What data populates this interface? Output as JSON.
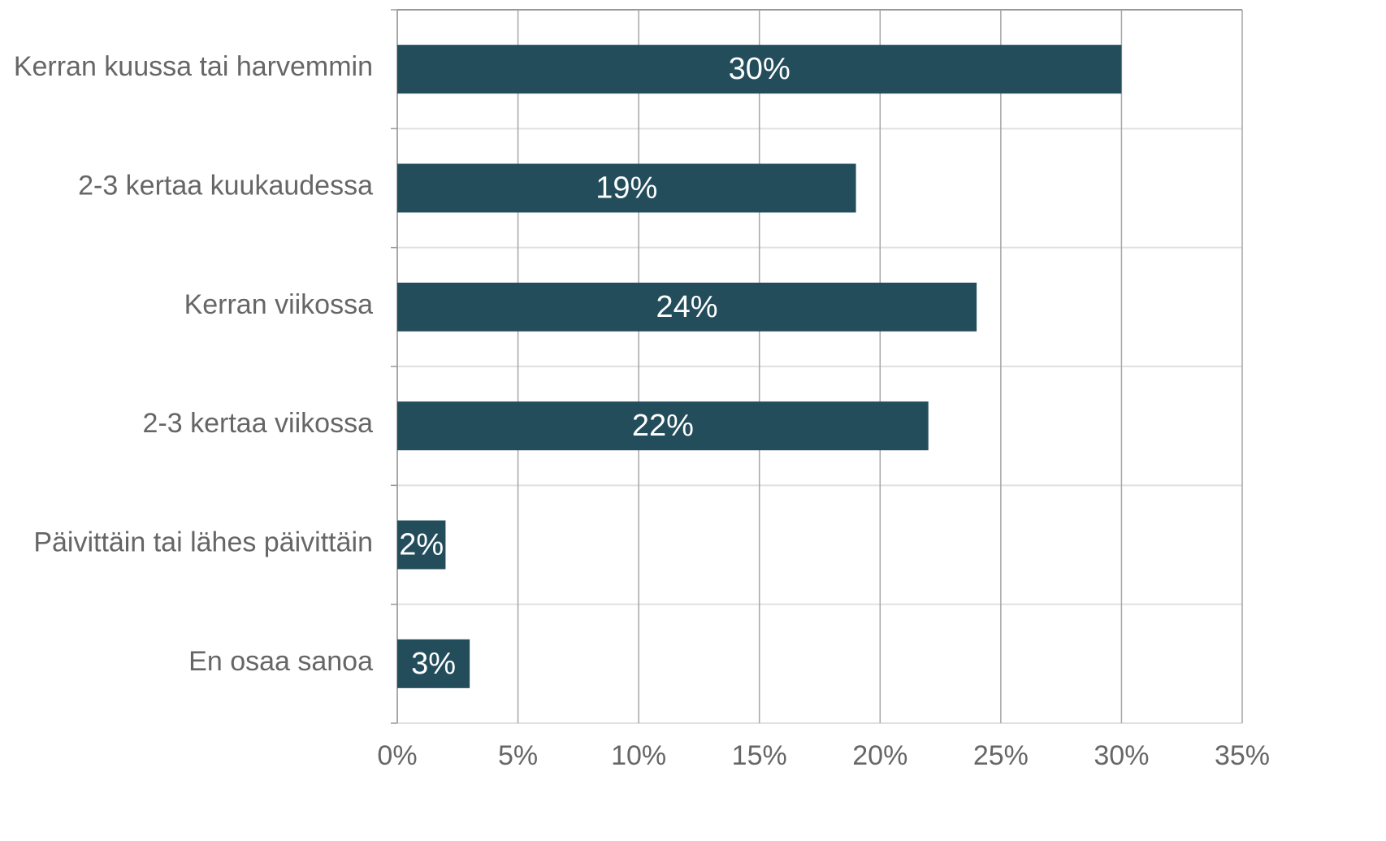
{
  "chart_data": {
    "type": "bar",
    "orientation": "horizontal",
    "categories": [
      "Kerran kuussa tai harvemmin",
      "2-3 kertaa kuukaudessa",
      "Kerran viikossa",
      "2-3 kertaa viikossa",
      "Päivittäin tai lähes päivittäin",
      "En osaa sanoa"
    ],
    "values": [
      30,
      19,
      24,
      22,
      2,
      3
    ],
    "value_labels": [
      "30%",
      "19%",
      "24%",
      "22%",
      "2%",
      "3%"
    ],
    "color": "#234d5b",
    "xlim": [
      0,
      35
    ],
    "xticks": [
      {
        "value": 0,
        "label": "0%"
      },
      {
        "value": 5,
        "label": "5%"
      },
      {
        "value": 10,
        "label": "10%"
      },
      {
        "value": 15,
        "label": "15%"
      },
      {
        "value": 20,
        "label": "20%"
      },
      {
        "value": 25,
        "label": "25%"
      },
      {
        "value": 30,
        "label": "30%"
      },
      {
        "value": 35,
        "label": "35%"
      }
    ],
    "grid": true
  }
}
